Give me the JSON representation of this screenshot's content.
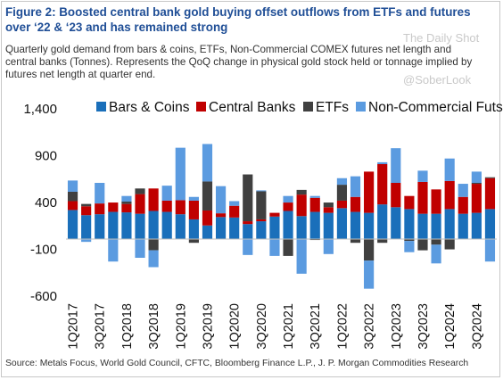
{
  "title": "Figure 2: Boosted central bank gold buying offset outflows from ETFs and futures over ‘22 & ‘23 and has remained strong",
  "subtitle": "Quarterly gold demand from bars & coins, ETFs, Non-Commercial COMEX futures net length and central banks (Tonnes). Represents the QoQ change in physical gold stock held or tonnage implied by futures net length at quarter end.",
  "watermark": {
    "line1": "The Daily Shot",
    "line2": "@SoberLook"
  },
  "source": "Source: Metals Focus, World Gold Council, CFTC, Bloomberg Finance L.P., J. P. Morgan Commodities Research",
  "chart_data": {
    "type": "bar",
    "stacked": true,
    "title": "",
    "xlabel": "",
    "ylabel": "",
    "ylim": [
      -600,
      1400
    ],
    "yticks": [
      1400,
      900,
      400,
      -100,
      -600
    ],
    "ytick_labels": [
      "1,400",
      "900",
      "400",
      "-100",
      "-600"
    ],
    "grid": false,
    "legend_position": "top",
    "categories": [
      "1Q2017",
      "2Q2017",
      "3Q2017",
      "4Q2017",
      "1Q2018",
      "2Q2018",
      "3Q2018",
      "4Q2018",
      "1Q2019",
      "2Q2019",
      "3Q2019",
      "4Q2019",
      "1Q2020",
      "2Q2020",
      "3Q2020",
      "4Q2020",
      "1Q2021",
      "2Q2021",
      "3Q2021",
      "4Q2021",
      "1Q2022",
      "2Q2022",
      "3Q2022",
      "4Q2022",
      "1Q2023",
      "2Q2023",
      "3Q2023",
      "4Q2023",
      "1Q2024",
      "2Q2024",
      "3Q2024",
      "4Q2024"
    ],
    "xtick_labels": [
      "1Q2017",
      "3Q2017",
      "1Q2018",
      "3Q2018",
      "1Q2019",
      "3Q2019",
      "1Q2020",
      "3Q2020",
      "1Q2021",
      "3Q2021",
      "1Q2022",
      "3Q2022",
      "1Q2023",
      "3Q2023",
      "1Q2024",
      "3Q2024"
    ],
    "series": [
      {
        "name": "Bars & Coins",
        "color": "#1a6fba",
        "values": [
          310,
          255,
          265,
          290,
          285,
          270,
          300,
          290,
          265,
          210,
          145,
          235,
          230,
          160,
          190,
          240,
          300,
          245,
          290,
          280,
          330,
          290,
          280,
          370,
          340,
          320,
          270,
          270,
          320,
          270,
          280,
          320
        ]
      },
      {
        "name": "Central Banks",
        "color": "#c00000",
        "values": [
          95,
          95,
          115,
          100,
          90,
          210,
          240,
          120,
          150,
          200,
          160,
          40,
          125,
          30,
          20,
          40,
          90,
          230,
          150,
          60,
          80,
          160,
          440,
          430,
          260,
          140,
          340,
          260,
          300,
          180,
          310,
          330
        ]
      },
      {
        "name": "ETFs",
        "color": "#404040",
        "values": [
          100,
          25,
          0,
          0,
          25,
          60,
          -120,
          0,
          0,
          -40,
          310,
          0,
          0,
          500,
          300,
          0,
          -180,
          50,
          -10,
          50,
          170,
          -40,
          -230,
          -40,
          0,
          -20,
          -120,
          -60,
          -110,
          0,
          10,
          10
        ]
      },
      {
        "name": "Non-Commercial Futs",
        "color": "#5b9be0",
        "values": [
          120,
          -30,
          220,
          -240,
          60,
          -200,
          -180,
          160,
          560,
          40,
          400,
          290,
          50,
          -170,
          10,
          -180,
          70,
          -370,
          20,
          -160,
          70,
          220,
          -300,
          20,
          370,
          -120,
          120,
          -200,
          240,
          140,
          120,
          -240
        ]
      }
    ]
  }
}
